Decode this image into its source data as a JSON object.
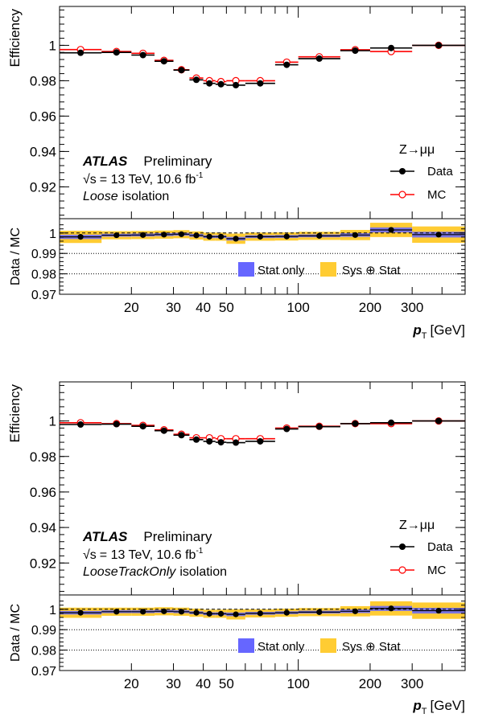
{
  "chart_data": [
    {
      "type": "scatter",
      "panel": "top",
      "xscale": "log",
      "xlim": [
        10,
        500
      ],
      "x_tick_labels": [
        "20",
        "30",
        "40",
        "50",
        "100",
        "200",
        "300"
      ],
      "xlabel_main": "p",
      "xlabel_sub": "T",
      "xlabel_unit": "[GeV]",
      "ylabel": "Efficiency",
      "ylim": [
        0.902,
        1.022
      ],
      "y_tick_labels": [
        "0.92",
        "0.94",
        "0.96",
        "0.98",
        "1"
      ],
      "ratio_ylabel": "Data / MC",
      "ratio_ylim": [
        0.97,
        1.007
      ],
      "ratio_y_tick_labels": [
        "0.97",
        "0.98",
        "0.99",
        "1"
      ],
      "title_main": "ATLAS",
      "title_sub": "Preliminary",
      "energy_sqrt": "√s",
      "energy_rest": "= 13 TeV, 10.6 fb",
      "energy_sup": "-1",
      "isolation_name": "Loose",
      "isolation_suffix": "isolation",
      "channel": "Z→μμ",
      "legend_data": "Data",
      "legend_mc": "MC",
      "legend_stat": "Stat only",
      "legend_sys": "Sys ⊕ Stat",
      "colors": {
        "data": "#000000",
        "mc": "#ff0000",
        "stat": "#6666ff",
        "sys": "#ffcc33"
      },
      "bins": [
        {
          "lo": 10,
          "hi": 15,
          "data": 0.9958,
          "mc": 0.9976,
          "ratio": 0.9981,
          "sys": 0.003
        },
        {
          "lo": 15,
          "hi": 20,
          "data": 0.996,
          "mc": 0.9965,
          "ratio": 0.9989,
          "sys": 0.002
        },
        {
          "lo": 20,
          "hi": 25,
          "data": 0.9945,
          "mc": 0.9955,
          "ratio": 0.999,
          "sys": 0.002
        },
        {
          "lo": 25,
          "hi": 30,
          "data": 0.991,
          "mc": 0.9915,
          "ratio": 0.9992,
          "sys": 0.002
        },
        {
          "lo": 30,
          "hi": 35,
          "data": 0.986,
          "mc": 0.9862,
          "ratio": 0.9994,
          "sys": 0.002
        },
        {
          "lo": 35,
          "hi": 40,
          "data": 0.9805,
          "mc": 0.9815,
          "ratio": 0.9988,
          "sys": 0.002
        },
        {
          "lo": 40,
          "hi": 45,
          "data": 0.9785,
          "mc": 0.98,
          "ratio": 0.9982,
          "sys": 0.002
        },
        {
          "lo": 45,
          "hi": 50,
          "data": 0.978,
          "mc": 0.9795,
          "ratio": 0.9982,
          "sys": 0.002
        },
        {
          "lo": 50,
          "hi": 60,
          "data": 0.9775,
          "mc": 0.98,
          "ratio": 0.9972,
          "sys": 0.0025
        },
        {
          "lo": 60,
          "hi": 80,
          "data": 0.9785,
          "mc": 0.98,
          "ratio": 0.9982,
          "sys": 0.002
        },
        {
          "lo": 80,
          "hi": 100,
          "data": 0.989,
          "mc": 0.9905,
          "ratio": 0.9983,
          "sys": 0.002
        },
        {
          "lo": 100,
          "hi": 150,
          "data": 0.9925,
          "mc": 0.9935,
          "ratio": 0.9986,
          "sys": 0.002
        },
        {
          "lo": 150,
          "hi": 200,
          "data": 0.997,
          "mc": 0.9975,
          "ratio": 0.999,
          "sys": 0.0025
        },
        {
          "lo": 200,
          "hi": 300,
          "data": 0.9985,
          "mc": 0.9965,
          "ratio": 1.0015,
          "sys": 0.0035
        },
        {
          "lo": 300,
          "hi": 500,
          "data": 1.0,
          "mc": 1.0,
          "ratio": 0.9992,
          "sys": 0.004
        }
      ]
    },
    {
      "type": "scatter",
      "panel": "bottom",
      "xscale": "log",
      "xlim": [
        10,
        500
      ],
      "x_tick_labels": [
        "20",
        "30",
        "40",
        "50",
        "100",
        "200",
        "300"
      ],
      "xlabel_main": "p",
      "xlabel_sub": "T",
      "xlabel_unit": "[GeV]",
      "ylabel": "Efficiency",
      "ylim": [
        0.902,
        1.022
      ],
      "y_tick_labels": [
        "0.92",
        "0.94",
        "0.96",
        "0.98",
        "1"
      ],
      "ratio_ylabel": "Data / MC",
      "ratio_ylim": [
        0.97,
        1.007
      ],
      "ratio_y_tick_labels": [
        "0.97",
        "0.98",
        "0.99",
        "1"
      ],
      "title_main": "ATLAS",
      "title_sub": "Preliminary",
      "energy_sqrt": "√s",
      "energy_rest": "= 13 TeV, 10.6 fb",
      "energy_sup": "-1",
      "isolation_name": "LooseTrackOnly",
      "isolation_suffix": "isolation",
      "channel": "Z→μμ",
      "legend_data": "Data",
      "legend_mc": "MC",
      "legend_stat": "Stat only",
      "legend_sys": "Sys ⊕ Stat",
      "colors": {
        "data": "#000000",
        "mc": "#ff0000",
        "stat": "#6666ff",
        "sys": "#ffcc33"
      },
      "bins": [
        {
          "lo": 10,
          "hi": 15,
          "data": 0.998,
          "mc": 0.999,
          "ratio": 0.9983,
          "sys": 0.0025
        },
        {
          "lo": 15,
          "hi": 20,
          "data": 0.9982,
          "mc": 0.9985,
          "ratio": 0.9988,
          "sys": 0.002
        },
        {
          "lo": 20,
          "hi": 25,
          "data": 0.997,
          "mc": 0.9975,
          "ratio": 0.9988,
          "sys": 0.002
        },
        {
          "lo": 25,
          "hi": 30,
          "data": 0.9945,
          "mc": 0.995,
          "ratio": 0.999,
          "sys": 0.002
        },
        {
          "lo": 30,
          "hi": 35,
          "data": 0.992,
          "mc": 0.9925,
          "ratio": 0.9988,
          "sys": 0.002
        },
        {
          "lo": 35,
          "hi": 40,
          "data": 0.9895,
          "mc": 0.9905,
          "ratio": 0.9983,
          "sys": 0.002
        },
        {
          "lo": 40,
          "hi": 45,
          "data": 0.9885,
          "mc": 0.9905,
          "ratio": 0.9978,
          "sys": 0.002
        },
        {
          "lo": 45,
          "hi": 50,
          "data": 0.988,
          "mc": 0.99,
          "ratio": 0.9978,
          "sys": 0.002
        },
        {
          "lo": 50,
          "hi": 60,
          "data": 0.9878,
          "mc": 0.99,
          "ratio": 0.9975,
          "sys": 0.0025
        },
        {
          "lo": 60,
          "hi": 80,
          "data": 0.9885,
          "mc": 0.99,
          "ratio": 0.998,
          "sys": 0.002
        },
        {
          "lo": 80,
          "hi": 100,
          "data": 0.9955,
          "mc": 0.996,
          "ratio": 0.9983,
          "sys": 0.002
        },
        {
          "lo": 100,
          "hi": 150,
          "data": 0.9968,
          "mc": 0.997,
          "ratio": 0.9986,
          "sys": 0.002
        },
        {
          "lo": 150,
          "hi": 200,
          "data": 0.9985,
          "mc": 0.9985,
          "ratio": 0.999,
          "sys": 0.0025
        },
        {
          "lo": 200,
          "hi": 300,
          "data": 0.999,
          "mc": 0.9985,
          "ratio": 1.0004,
          "sys": 0.0035
        },
        {
          "lo": 300,
          "hi": 500,
          "data": 1.0,
          "mc": 1.0,
          "ratio": 0.9993,
          "sys": 0.004
        }
      ]
    }
  ]
}
